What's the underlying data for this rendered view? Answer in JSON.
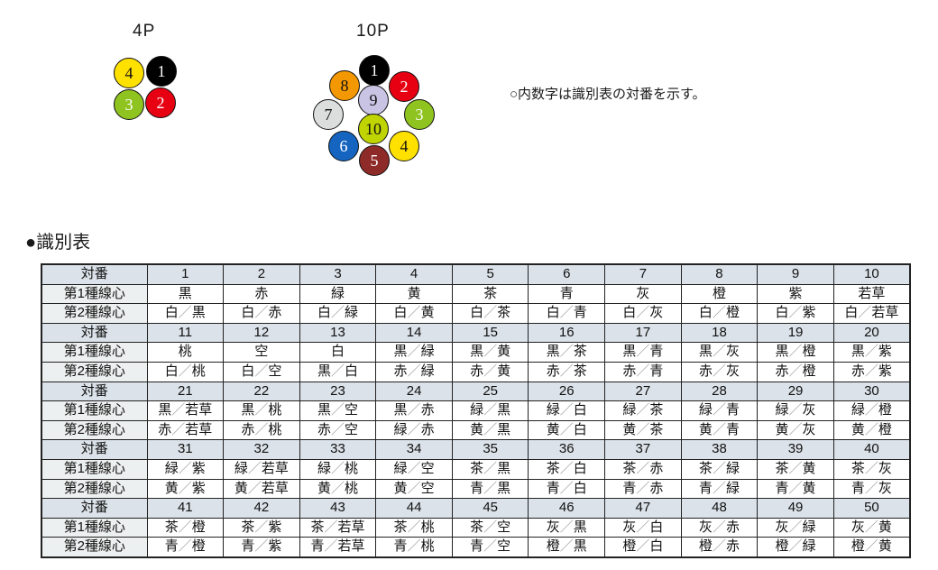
{
  "note": "○内数字は識別表の対番を示す。",
  "section_title": "●識別表",
  "diagrams": [
    {
      "label": "4P",
      "circles": [
        {
          "num": "4",
          "color": "#ffe100",
          "text_color": "#111111"
        },
        {
          "num": "1",
          "color": "#000000",
          "text_color": "#ffffff"
        },
        {
          "num": "3",
          "color": "#8fc31f",
          "text_color": "#ffffff"
        },
        {
          "num": "2",
          "color": "#e60012",
          "text_color": "#ffffff"
        }
      ]
    },
    {
      "label": "10P",
      "circles": [
        {
          "num": "1",
          "color": "#000000",
          "text_color": "#ffffff"
        },
        {
          "num": "8",
          "color": "#f39800",
          "text_color": "#111111"
        },
        {
          "num": "2",
          "color": "#e60012",
          "text_color": "#ffffff"
        },
        {
          "num": "7",
          "color": "#dcdddd",
          "text_color": "#111111"
        },
        {
          "num": "3",
          "color": "#8fc31f",
          "text_color": "#ffffff"
        },
        {
          "num": "9",
          "color": "#cac4e4",
          "text_color": "#111111"
        },
        {
          "num": "6",
          "color": "#1565c0",
          "text_color": "#ffffff"
        },
        {
          "num": "4",
          "color": "#ffe100",
          "text_color": "#111111"
        },
        {
          "num": "10",
          "color": "#bfd400",
          "text_color": "#111111"
        },
        {
          "num": "5",
          "color": "#8e2b28",
          "text_color": "#ffffff"
        }
      ]
    }
  ],
  "table": {
    "row_labels": [
      "対番",
      "第1種線心",
      "第2種線心"
    ],
    "blocks": [
      {
        "numbers": [
          "1",
          "2",
          "3",
          "4",
          "5",
          "6",
          "7",
          "8",
          "9",
          "10"
        ],
        "first": [
          "黒",
          "赤",
          "緑",
          "黄",
          "茶",
          "青",
          "灰",
          "橙",
          "紫",
          "若草"
        ],
        "second": [
          "白／黒",
          "白／赤",
          "白／緑",
          "白／黄",
          "白／茶",
          "白／青",
          "白／灰",
          "白／橙",
          "白／紫",
          "白／若草"
        ]
      },
      {
        "numbers": [
          "11",
          "12",
          "13",
          "14",
          "15",
          "16",
          "17",
          "18",
          "19",
          "20"
        ],
        "first": [
          "桃",
          "空",
          "白",
          "黒／緑",
          "黒／黄",
          "黒／茶",
          "黒／青",
          "黒／灰",
          "黒／橙",
          "黒／紫"
        ],
        "second": [
          "白／桃",
          "白／空",
          "黒／白",
          "赤／緑",
          "赤／黄",
          "赤／茶",
          "赤／青",
          "赤／灰",
          "赤／橙",
          "赤／紫"
        ]
      },
      {
        "numbers": [
          "21",
          "22",
          "23",
          "24",
          "25",
          "26",
          "27",
          "28",
          "29",
          "30"
        ],
        "first": [
          "黒／若草",
          "黒／桃",
          "黒／空",
          "黒／赤",
          "緑／黒",
          "緑／白",
          "緑／茶",
          "緑／青",
          "緑／灰",
          "緑／橙"
        ],
        "second": [
          "赤／若草",
          "赤／桃",
          "赤／空",
          "緑／赤",
          "黄／黒",
          "黄／白",
          "黄／茶",
          "黄／青",
          "黄／灰",
          "黄／橙"
        ]
      },
      {
        "numbers": [
          "31",
          "32",
          "33",
          "34",
          "35",
          "36",
          "37",
          "38",
          "39",
          "40"
        ],
        "first": [
          "緑／紫",
          "緑／若草",
          "緑／桃",
          "緑／空",
          "茶／黒",
          "茶／白",
          "茶／赤",
          "茶／緑",
          "茶／黄",
          "茶／灰"
        ],
        "second": [
          "黄／紫",
          "黄／若草",
          "黄／桃",
          "黄／空",
          "青／黒",
          "青／白",
          "青／赤",
          "青／緑",
          "青／黄",
          "青／灰"
        ]
      },
      {
        "numbers": [
          "41",
          "42",
          "43",
          "44",
          "45",
          "46",
          "47",
          "48",
          "49",
          "50"
        ],
        "first": [
          "茶／橙",
          "茶／紫",
          "茶／若草",
          "茶／桃",
          "茶／空",
          "灰／黒",
          "灰／白",
          "灰／赤",
          "灰／緑",
          "灰／黄"
        ],
        "second": [
          "青／橙",
          "青／紫",
          "青／若草",
          "青／桃",
          "青／空",
          "橙／黒",
          "橙／白",
          "橙／赤",
          "橙／緑",
          "橙／黄"
        ]
      }
    ]
  },
  "colors": {
    "pair_row_fill": "#dbe2e9",
    "label_cell_fill": "#edf0f0",
    "table_border": "#222222",
    "slash": "#9fa0a0"
  }
}
